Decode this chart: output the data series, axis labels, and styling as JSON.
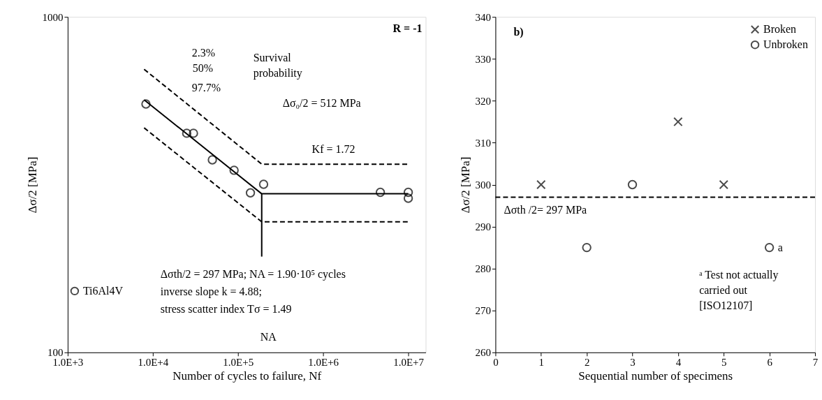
{
  "chart_data": [
    {
      "type": "line",
      "xlabel": "Number of cycles to failure, Nf",
      "ylabel": "Δσ/2 [MPa]",
      "log": "xy",
      "xlim": [
        1000,
        16000000
      ],
      "xticks": [
        {
          "value": 1000,
          "label": "1.0E+3"
        },
        {
          "value": 10000,
          "label": "1.0E+4"
        },
        {
          "value": 100000,
          "label": "1.0E+5"
        },
        {
          "value": 1000000,
          "label": "1.0E+6"
        },
        {
          "value": 10000000,
          "label": "1.0E+7"
        }
      ],
      "ylim": [
        100,
        1000
      ],
      "yticks": [
        100,
        1000
      ],
      "legend": "bottom left",
      "series": [
        {
          "line_style": "dashed",
          "color": "#000000",
          "x": [
            7900,
            190000,
            10000000
          ],
          "values": [
            698,
            364,
            364
          ]
        },
        {
          "line_style": "solid",
          "color": "#000000",
          "x": [
            7900,
            190000,
            10000000
          ],
          "values": [
            566,
            297,
            297
          ]
        },
        {
          "line_style": "dashed",
          "color": "#000000",
          "x": [
            7900,
            190000,
            10000000
          ],
          "values": [
            467,
            245,
            245
          ]
        },
        {
          "line_style": "solid",
          "color": "#000000",
          "x": [
            190000,
            190000
          ],
          "values": [
            297,
            193
          ]
        },
        {
          "type": "scatter",
          "name": "Ti6Al4V",
          "marker": "circle",
          "color": "#000000",
          "x": [
            8300,
            25000,
            30000,
            50000,
            90000,
            140000,
            200000,
            4700000,
            10000000,
            10000000
          ],
          "values": [
            550,
            450,
            450,
            375,
            349,
            299,
            317,
            300,
            300,
            288
          ]
        }
      ],
      "annotations": [
        "R = -1",
        "Survival\nprobability",
        "Δσth/2 = 297 MPa; NA = 1.90·10⁵ cycles",
        "inverse slope k = 4.88;",
        "stress scatter index Tσ = 1.49",
        "2.3%",
        "50%",
        "97.7%",
        "Δσ₀/2 = 512 MPa",
        "Kf = 1.72",
        "NA"
      ]
    },
    {
      "type": "scatter",
      "xlabel": "Sequential number of specimens",
      "ylabel": "Δσ/2 [MPa]",
      "xlim": [
        0,
        7
      ],
      "xticks": [
        0,
        1,
        2,
        3,
        4,
        5,
        6,
        7
      ],
      "ylim": [
        260,
        340
      ],
      "yticks": [
        260,
        270,
        280,
        290,
        300,
        310,
        320,
        330,
        340
      ],
      "legend": "top right",
      "series": [
        {
          "name": "Broken",
          "marker": "cross",
          "color": "#000000",
          "x": [
            1,
            4,
            5
          ],
          "values": [
            300,
            315,
            300
          ]
        },
        {
          "name": "Unbroken",
          "marker": "circle",
          "color": "#000000",
          "x": [
            2,
            3,
            6
          ],
          "values": [
            285,
            300,
            285
          ]
        }
      ],
      "ref_lines": [
        {
          "axis": "y",
          "value": 297,
          "label": "Δσth /2= 297 MPa",
          "line_style": "dashed",
          "color": "#000000"
        }
      ],
      "annotations": [
        "b)",
        "ᵃ Test not actually\ncarried out\n[ISO12107]",
        {
          "text": "a",
          "x": 6,
          "y": 285
        }
      ]
    }
  ]
}
